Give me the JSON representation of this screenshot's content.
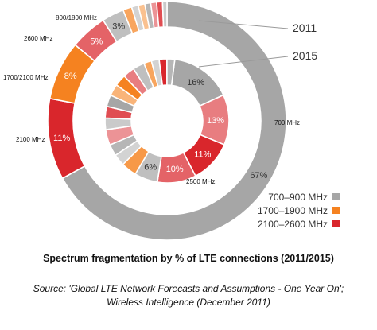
{
  "chart_data": {
    "type": "pie",
    "variant": "nested-donut",
    "rings": [
      {
        "name": "2011",
        "slices": [
          {
            "band": "700–900 MHz",
            "label": "700 MHz",
            "value": 67,
            "value_label": "67%"
          },
          {
            "band": "2100–2600 MHz",
            "label": "2100 MHz",
            "value": 11,
            "value_label": "11%"
          },
          {
            "band": "1700–1900 MHz",
            "label": "1700/2100 MHz",
            "value": 8,
            "value_label": "8%"
          },
          {
            "band": "2100–2600 MHz",
            "label": "2600 MHz",
            "value": 5,
            "value_label": "5%"
          },
          {
            "band": "700–900 MHz",
            "label": "800/1800 MHz",
            "value": 3,
            "value_label": "3%"
          },
          {
            "band": "1700–1900 MHz",
            "label": "",
            "value": 1.2,
            "value_label": ""
          },
          {
            "band": "700–900 MHz",
            "label": "",
            "value": 0.9,
            "value_label": ""
          },
          {
            "band": "1700–1900 MHz",
            "label": "",
            "value": 0.9,
            "value_label": ""
          },
          {
            "band": "700–900 MHz",
            "label": "",
            "value": 0.8,
            "value_label": ""
          },
          {
            "band": "2100–2600 MHz",
            "label": "",
            "value": 0.8,
            "value_label": ""
          },
          {
            "band": "2100–2600 MHz",
            "label": "",
            "value": 0.8,
            "value_label": ""
          },
          {
            "band": "700–900 MHz",
            "label": "",
            "value": 0.6,
            "value_label": ""
          }
        ]
      },
      {
        "name": "2015",
        "slices": [
          {
            "band": "700–900 MHz",
            "label": "",
            "value": 16,
            "value_label": "16%"
          },
          {
            "band": "2100–2600 MHz",
            "label": "",
            "value": 13,
            "value_label": "13%"
          },
          {
            "band": "2100–2600 MHz",
            "label": "",
            "value": 11,
            "value_label": "11%"
          },
          {
            "band": "2100–2600 MHz",
            "label": "2500 MHz",
            "value": 10,
            "value_label": "10%"
          },
          {
            "band": "700–900 MHz",
            "label": "",
            "value": 6,
            "value_label": "6%"
          },
          {
            "band": "1700–1900 MHz",
            "label": "",
            "value": 4,
            "value_label": ""
          },
          {
            "band": "700–900 MHz",
            "label": "",
            "value": 3,
            "value_label": ""
          },
          {
            "band": "700–900 MHz",
            "label": "",
            "value": 3,
            "value_label": ""
          },
          {
            "band": "2100–2600 MHz",
            "label": "",
            "value": 4,
            "value_label": ""
          },
          {
            "band": "700–900 MHz",
            "label": "",
            "value": 3,
            "value_label": ""
          },
          {
            "band": "2100–2600 MHz",
            "label": "",
            "value": 3,
            "value_label": ""
          },
          {
            "band": "700–900 MHz",
            "label": "",
            "value": 3,
            "value_label": ""
          },
          {
            "band": "1700–1900 MHz",
            "label": "",
            "value": 3,
            "value_label": ""
          },
          {
            "band": "1700–1900 MHz",
            "label": "",
            "value": 3,
            "value_label": ""
          },
          {
            "band": "2100–2600 MHz",
            "label": "",
            "value": 3,
            "value_label": ""
          },
          {
            "band": "700–900 MHz",
            "label": "",
            "value": 3,
            "value_label": ""
          },
          {
            "band": "1700–1900 MHz",
            "label": "",
            "value": 2,
            "value_label": ""
          },
          {
            "band": "700–900 MHz",
            "label": "",
            "value": 2,
            "value_label": ""
          },
          {
            "band": "2100–2600 MHz",
            "label": "",
            "value": 2,
            "value_label": ""
          },
          {
            "band": "700–900 MHz",
            "label": "",
            "value": 2,
            "value_label": ""
          }
        ]
      }
    ],
    "legend": {
      "position": "bottom-right",
      "entries": [
        {
          "label": "700–900 MHz",
          "color": "#a6a6a6"
        },
        {
          "label": "1700–1900 MHz",
          "color": "#f58220"
        },
        {
          "label": "2100–2600 MHz",
          "color": "#d9262c"
        }
      ]
    },
    "title": "Spectrum fragmentation by % of LTE connections (2011/2015)",
    "source": "Source: 'Global LTE Network Forecasts and Assumptions - One Year On'; Wireless Intelligence (December 2011)"
  }
}
